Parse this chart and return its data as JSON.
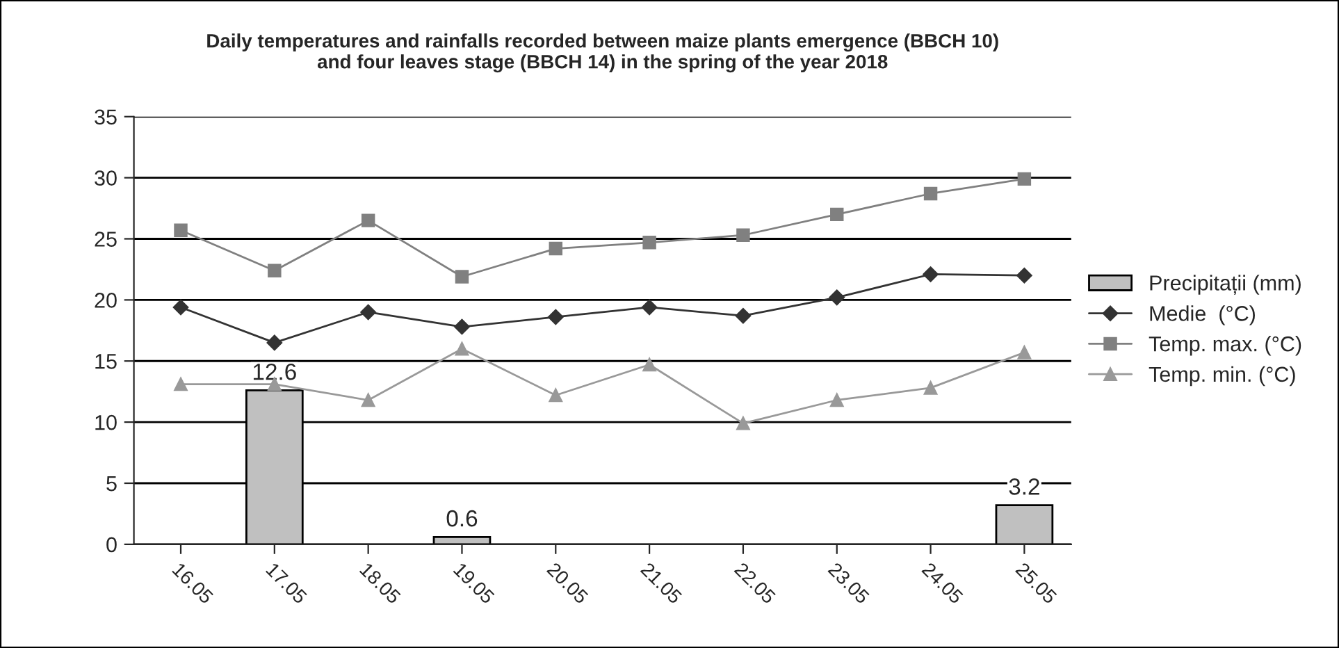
{
  "chart_data": {
    "type": "bar",
    "title": "Daily temperatures and rainfalls recorded between maize plants emergence (BBCH 10)\nand four leaves stage (BBCH 14) in the spring of the year 2018",
    "categories": [
      "16.05",
      "17.05",
      "18.05",
      "19.05",
      "20.05",
      "21.05",
      "22.05",
      "23.05",
      "24.05",
      "25.05"
    ],
    "series": [
      {
        "name": "Precipitații (mm)",
        "color": "#c0c0c0",
        "values": [
          null,
          12.6,
          null,
          0.6,
          null,
          null,
          null,
          null,
          null,
          3.2
        ],
        "value_labels": [
          null,
          "12.6",
          null,
          "0.6",
          null,
          null,
          null,
          null,
          null,
          "3.2"
        ]
      },
      {
        "name": "Medie  (°C)",
        "type": "line",
        "color": "#333333",
        "marker": "diamond",
        "values": [
          19.4,
          16.5,
          19.0,
          17.8,
          18.6,
          19.4,
          18.7,
          20.2,
          22.1,
          22.0
        ]
      },
      {
        "name": "Temp. max. (°C)",
        "type": "line",
        "color": "#808080",
        "marker": "square",
        "values": [
          25.7,
          22.4,
          26.5,
          21.9,
          24.2,
          24.7,
          25.3,
          27.0,
          28.7,
          29.9
        ]
      },
      {
        "name": "Temp. min. (°C)",
        "type": "line",
        "color": "#999999",
        "marker": "triangle",
        "values": [
          13.1,
          13.1,
          11.8,
          16.0,
          12.2,
          14.7,
          9.9,
          11.8,
          12.8,
          15.7
        ]
      }
    ],
    "ylim": [
      0,
      35
    ],
    "yticks": [
      0,
      5,
      10,
      15,
      20,
      25,
      30,
      35
    ],
    "grid": "y",
    "legend": "right"
  }
}
